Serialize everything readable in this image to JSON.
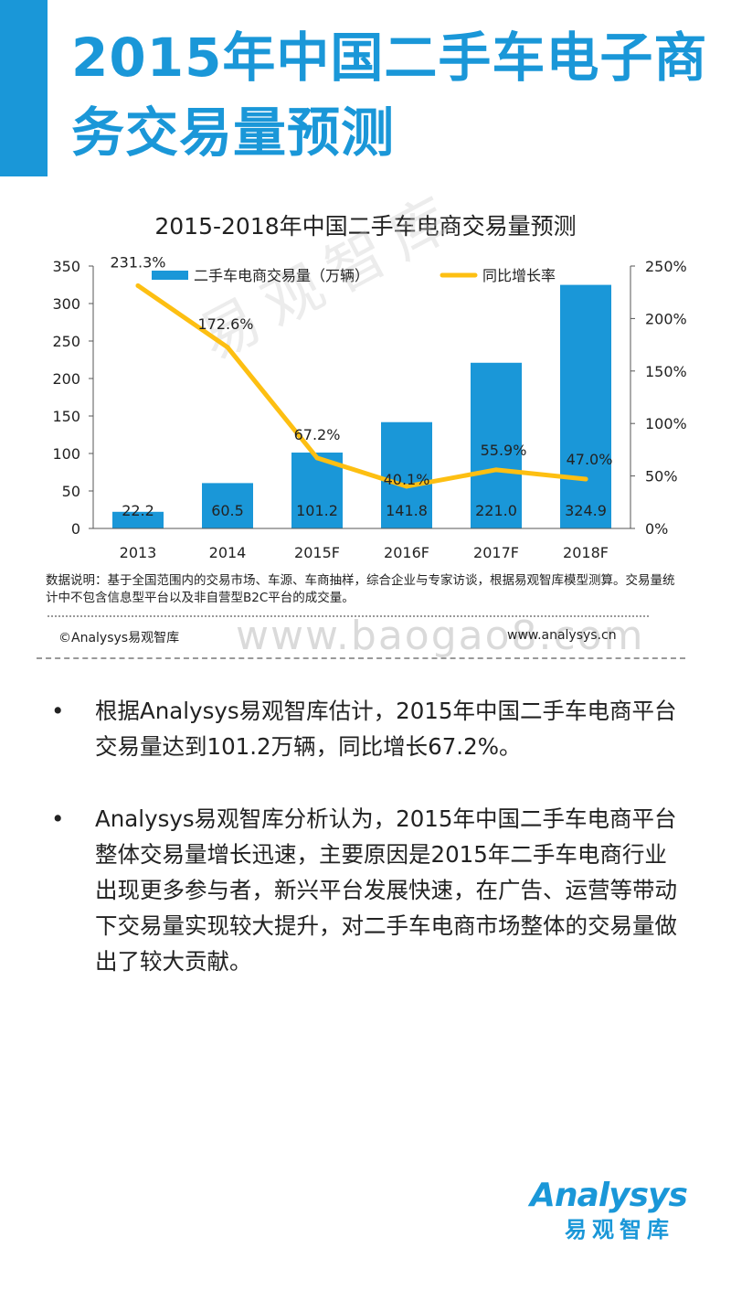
{
  "header": {
    "title": "2015年中国二手车电子商务交易量预测"
  },
  "chart_data": {
    "type": "bar+line",
    "title": "2015-2018年中国二手车电商交易量预测",
    "categories": [
      "2013",
      "2014",
      "2015F",
      "2016F",
      "2017F",
      "2018F"
    ],
    "series": [
      {
        "name": "二手车电商交易量（万辆）",
        "type": "bar",
        "axis": "left",
        "values": [
          22.2,
          60.5,
          101.2,
          141.8,
          221.0,
          324.9
        ],
        "labels": [
          "22.2",
          "60.5",
          "101.2",
          "141.8",
          "221.0",
          "324.9"
        ],
        "color": "#1a97d8"
      },
      {
        "name": "同比增长率",
        "type": "line",
        "axis": "right",
        "values": [
          231.3,
          172.6,
          67.2,
          40.1,
          55.9,
          47.0
        ],
        "labels": [
          "231.3%",
          "172.6%",
          "67.2%",
          "40.1%",
          "55.9%",
          "47.0%"
        ],
        "color": "#fdbf12"
      }
    ],
    "left_axis": {
      "min": 0,
      "max": 350,
      "ticks": [
        "0",
        "50",
        "100",
        "150",
        "200",
        "250",
        "300",
        "350"
      ]
    },
    "right_axis": {
      "min": 0,
      "max": 250,
      "ticks": [
        "0%",
        "50%",
        "100%",
        "150%",
        "200%",
        "250%"
      ]
    },
    "legend_position": "top",
    "grid": false
  },
  "watermark": "易观智库",
  "note": "数据说明：基于全国范围内的交易市场、车源、车商抽样，综合企业与专家访谈，根据易观智库模型测算。交易量统计中不包含信息型平台以及非自营型B2C平台的成交量。",
  "source": {
    "copyright": "©Analysys易观智库",
    "website": "www.analysys.cn",
    "watermark_url": "www.baogao8.com"
  },
  "bullets": [
    {
      "marker": "•",
      "text": "根据Analysys易观智库估计，2015年中国二手车电商平台交易量达到101.2万辆，同比增长67.2%。"
    },
    {
      "marker": "•",
      "text": "Analysys易观智库分析认为，2015年中国二手车电商平台整体交易量增长迅速，主要原因是2015年二手车电商行业出现更多参与者，新兴平台发展快速，在广告、运营等带动下交易量实现较大提升，对二手车电商市场整体的交易量做出了较大贡献。"
    }
  ],
  "logo": {
    "en": "Analysys",
    "cn": "易观智库"
  },
  "colors": {
    "accent": "#1a97d8",
    "line": "#fdbf12"
  }
}
